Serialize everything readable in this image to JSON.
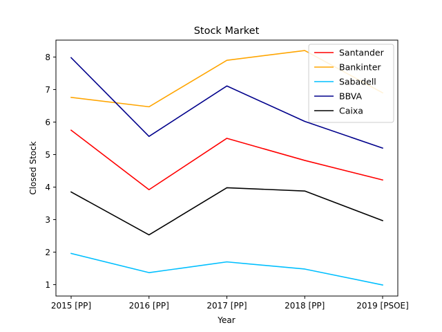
{
  "chart_data": {
    "type": "line",
    "title": "Stock Market",
    "xlabel": "Year",
    "ylabel": "Closed Stock",
    "categories": [
      "2015 [PP]",
      "2016 [PP]",
      "2017 [PP]",
      "2018 [PP]",
      "2019 [PSOE]"
    ],
    "ylim": [
      0.65,
      8.52
    ],
    "yticks": [
      1,
      2,
      3,
      4,
      5,
      6,
      7,
      8
    ],
    "grid": false,
    "legend_position": "top-right",
    "series": [
      {
        "name": "Santander",
        "color": "#ff0000",
        "values": [
          5.75,
          3.92,
          5.5,
          4.82,
          4.22
        ]
      },
      {
        "name": "Bankinter",
        "color": "#ffa500",
        "values": [
          6.76,
          6.47,
          7.9,
          8.2,
          6.9
        ]
      },
      {
        "name": "Sabadell",
        "color": "#00bfff",
        "values": [
          1.96,
          1.37,
          1.7,
          1.48,
          0.99
        ]
      },
      {
        "name": "BBVA",
        "color": "#00008b",
        "values": [
          7.98,
          5.56,
          7.11,
          6.02,
          5.2
        ]
      },
      {
        "name": "Caixa",
        "color": "#000000",
        "values": [
          3.85,
          2.53,
          3.98,
          3.88,
          2.97
        ]
      }
    ]
  }
}
